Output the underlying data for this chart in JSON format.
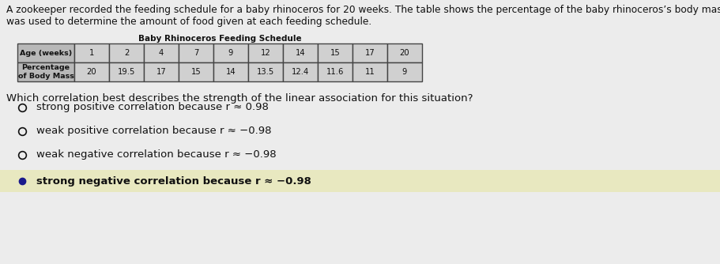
{
  "bg_color": "#ececec",
  "title_line1": "A zookeeper recorded the feeding schedule for a baby rhinoceros for 20 weeks. The table shows the percentage of the baby rhinoceros’s body mass that",
  "title_line2": "was used to determine the amount of food given at each feeding schedule.",
  "table_title": "Baby Rhinoceros Feeding Schedule",
  "row1_label": "Age (weeks)",
  "row2_label": "Percentage\nof Body Mass",
  "age_values": [
    "1",
    "2",
    "4",
    "7",
    "9",
    "12",
    "14",
    "15",
    "17",
    "20"
  ],
  "pct_values": [
    "20",
    "19.5",
    "17",
    "15",
    "14",
    "13.5",
    "12.4",
    "11.6",
    "11",
    "9"
  ],
  "question": "Which correlation best describes the strength of the linear association for this situation?",
  "options": [
    "strong positive correlation because r ≈ 0.98",
    "weak positive correlation because r ≈ −0.98",
    "weak negative correlation because r ≈ −0.98",
    "strong negative correlation because r ≈ −0.98"
  ],
  "correct_index": 3,
  "selected_bg": "#e8e8c0",
  "bullet_filled_color": "#1a1a8c",
  "text_color": "#111111",
  "table_label_bg": "#b8b8b8",
  "table_data_bg": "#d0d0d0",
  "table_border": "#444444",
  "title_fontsize": 8.8,
  "table_title_fontsize": 7.5,
  "table_label_fontsize": 6.8,
  "table_data_fontsize": 7.2,
  "question_fontsize": 9.5,
  "option_fontsize": 9.5
}
